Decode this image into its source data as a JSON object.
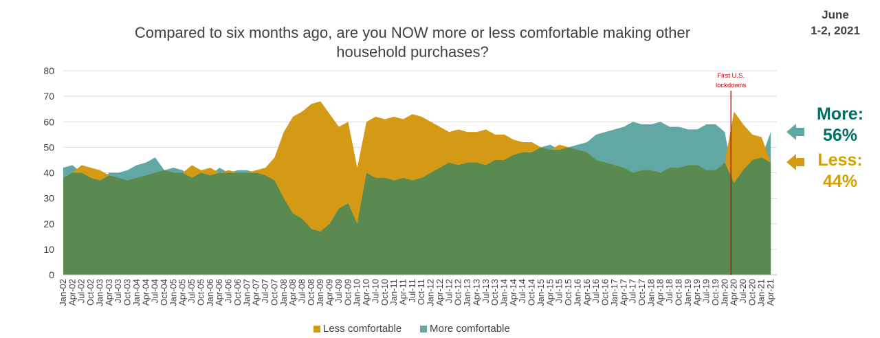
{
  "title": "Compared to six months ago, are you NOW more or less comfortable making other household purchases?",
  "date_stamp": "June\n1-2, 2021",
  "callouts": {
    "more_label": "More:",
    "more_value": "56%",
    "less_label": "Less:",
    "less_value": "44%"
  },
  "colors": {
    "less": "#d49a16",
    "more": "#61a8a4",
    "base": "#5a8a4f",
    "lockdown_line": "#c00000"
  },
  "legend": [
    "Less comfortable",
    "More comfortable"
  ],
  "chart_data": {
    "type": "area",
    "title": "Compared to six months ago, are you NOW more or less comfortable making other household purchases?",
    "ylim": [
      0,
      80
    ],
    "yticks": [
      0,
      10,
      20,
      30,
      40,
      50,
      60,
      70,
      80
    ],
    "grid": true,
    "legend_position": "bottom",
    "x_tick_labels": [
      "Jan-02",
      "Apr-02",
      "Jul-02",
      "Oct-02",
      "Jan-03",
      "Apr-03",
      "Jul-03",
      "Oct-03",
      "Jan-04",
      "Apr-04",
      "Jul-04",
      "Oct-04",
      "Jan-05",
      "Apr-05",
      "Jul-05",
      "Oct-05",
      "Jan-06",
      "Apr-06",
      "Jul-06",
      "Oct-06",
      "Jan-07",
      "Apr-07",
      "Jul-07",
      "Oct-07",
      "Jan-08",
      "Apr-08",
      "Jul-08",
      "Oct-08",
      "Jan-09",
      "Apr-09",
      "Jul-09",
      "Oct-09",
      "Jan-10",
      "Apr-10",
      "Jul-10",
      "Oct-10",
      "Jan-11",
      "Apr-11",
      "Jul-11",
      "Oct-11",
      "Jan-12",
      "Apr-12",
      "Jul-12",
      "Oct-12",
      "Jan-13",
      "Apr-13",
      "Jul-13",
      "Oct-13",
      "Jan-14",
      "Apr-14",
      "Jul-14",
      "Oct-14",
      "Jan-15",
      "Apr-15",
      "Jul-15",
      "Oct-15",
      "Jan-16",
      "Apr-16",
      "Jul-16",
      "Oct-16",
      "Jan-17",
      "Apr-17",
      "Jul-17",
      "Oct-17",
      "Jan-18",
      "Apr-18",
      "Jul-18",
      "Oct-18",
      "Jan-19",
      "Apr-19",
      "Jul-19",
      "Oct-19",
      "Jan-20",
      "Apr-20",
      "Jul-20",
      "Oct-20",
      "Jan-21",
      "Apr-21"
    ],
    "annotation": {
      "text": "First U.S. lockdowns",
      "x": "Mar-20"
    },
    "series": [
      {
        "name": "Less comfortable",
        "points": [
          [
            "Jan-02",
            38
          ],
          [
            "Apr-02",
            40
          ],
          [
            "Jul-02",
            43
          ],
          [
            "Oct-02",
            42
          ],
          [
            "Jan-03",
            41
          ],
          [
            "Apr-03",
            39
          ],
          [
            "Jul-03",
            38
          ],
          [
            "Oct-03",
            37
          ],
          [
            "Jan-04",
            38
          ],
          [
            "Apr-04",
            39
          ],
          [
            "Jul-04",
            40
          ],
          [
            "Oct-04",
            41
          ],
          [
            "Jan-05",
            40
          ],
          [
            "Apr-05",
            40
          ],
          [
            "Jul-05",
            43
          ],
          [
            "Oct-05",
            41
          ],
          [
            "Jan-06",
            42
          ],
          [
            "Apr-06",
            40
          ],
          [
            "Jul-06",
            41
          ],
          [
            "Oct-06",
            40
          ],
          [
            "Jan-07",
            40
          ],
          [
            "Apr-07",
            41
          ],
          [
            "Jul-07",
            42
          ],
          [
            "Oct-07",
            46
          ],
          [
            "Jan-08",
            56
          ],
          [
            "Apr-08",
            62
          ],
          [
            "Jul-08",
            64
          ],
          [
            "Oct-08",
            67
          ],
          [
            "Jan-09",
            68
          ],
          [
            "Apr-09",
            63
          ],
          [
            "Jul-09",
            58
          ],
          [
            "Oct-09",
            60
          ],
          [
            "Jan-10",
            42
          ],
          [
            "Apr-10",
            60
          ],
          [
            "Jul-10",
            62
          ],
          [
            "Oct-10",
            61
          ],
          [
            "Jan-11",
            62
          ],
          [
            "Apr-11",
            61
          ],
          [
            "Jul-11",
            63
          ],
          [
            "Oct-11",
            62
          ],
          [
            "Jan-12",
            60
          ],
          [
            "Apr-12",
            58
          ],
          [
            "Jul-12",
            56
          ],
          [
            "Oct-12",
            57
          ],
          [
            "Jan-13",
            56
          ],
          [
            "Apr-13",
            56
          ],
          [
            "Jul-13",
            57
          ],
          [
            "Oct-13",
            55
          ],
          [
            "Jan-14",
            55
          ],
          [
            "Apr-14",
            53
          ],
          [
            "Jul-14",
            52
          ],
          [
            "Oct-14",
            52
          ],
          [
            "Jan-15",
            50
          ],
          [
            "Apr-15",
            49
          ],
          [
            "Jul-15",
            51
          ],
          [
            "Oct-15",
            50
          ],
          [
            "Jan-16",
            49
          ],
          [
            "Apr-16",
            48
          ],
          [
            "Jul-16",
            45
          ],
          [
            "Oct-16",
            44
          ],
          [
            "Jan-17",
            43
          ],
          [
            "Apr-17",
            42
          ],
          [
            "Jul-17",
            40
          ],
          [
            "Oct-17",
            41
          ],
          [
            "Jan-18",
            41
          ],
          [
            "Apr-18",
            40
          ],
          [
            "Jul-18",
            42
          ],
          [
            "Oct-18",
            42
          ],
          [
            "Jan-19",
            43
          ],
          [
            "Apr-19",
            43
          ],
          [
            "Jul-19",
            41
          ],
          [
            "Oct-19",
            41
          ],
          [
            "Jan-20",
            44
          ],
          [
            "Apr-20",
            64
          ],
          [
            "Jul-20",
            59
          ],
          [
            "Oct-20",
            55
          ],
          [
            "Jan-21",
            54
          ],
          [
            "Apr-21",
            44
          ]
        ]
      },
      {
        "name": "More comfortable",
        "points": [
          [
            "Jan-02",
            42
          ],
          [
            "Apr-02",
            43
          ],
          [
            "Jul-02",
            40
          ],
          [
            "Oct-02",
            38
          ],
          [
            "Jan-03",
            37
          ],
          [
            "Apr-03",
            40
          ],
          [
            "Jul-03",
            40
          ],
          [
            "Oct-03",
            41
          ],
          [
            "Jan-04",
            43
          ],
          [
            "Apr-04",
            44
          ],
          [
            "Jul-04",
            46
          ],
          [
            "Oct-04",
            41
          ],
          [
            "Jan-05",
            42
          ],
          [
            "Apr-05",
            41
          ],
          [
            "Jul-05",
            38
          ],
          [
            "Oct-05",
            40
          ],
          [
            "Jan-06",
            39
          ],
          [
            "Apr-06",
            42
          ],
          [
            "Jul-06",
            40
          ],
          [
            "Oct-06",
            41
          ],
          [
            "Jan-07",
            41
          ],
          [
            "Apr-07",
            40
          ],
          [
            "Jul-07",
            39
          ],
          [
            "Oct-07",
            37
          ],
          [
            "Jan-08",
            30
          ],
          [
            "Apr-08",
            24
          ],
          [
            "Jul-08",
            22
          ],
          [
            "Oct-08",
            18
          ],
          [
            "Jan-09",
            17
          ],
          [
            "Apr-09",
            20
          ],
          [
            "Jul-09",
            26
          ],
          [
            "Oct-09",
            28
          ],
          [
            "Jan-10",
            20
          ],
          [
            "Apr-10",
            40
          ],
          [
            "Jul-10",
            38
          ],
          [
            "Oct-10",
            38
          ],
          [
            "Jan-11",
            37
          ],
          [
            "Apr-11",
            38
          ],
          [
            "Jul-11",
            37
          ],
          [
            "Oct-11",
            38
          ],
          [
            "Jan-12",
            40
          ],
          [
            "Apr-12",
            42
          ],
          [
            "Jul-12",
            44
          ],
          [
            "Oct-12",
            43
          ],
          [
            "Jan-13",
            44
          ],
          [
            "Apr-13",
            44
          ],
          [
            "Jul-13",
            43
          ],
          [
            "Oct-13",
            45
          ],
          [
            "Jan-14",
            45
          ],
          [
            "Apr-14",
            47
          ],
          [
            "Jul-14",
            48
          ],
          [
            "Oct-14",
            48
          ],
          [
            "Jan-15",
            50
          ],
          [
            "Apr-15",
            51
          ],
          [
            "Jul-15",
            49
          ],
          [
            "Oct-15",
            50
          ],
          [
            "Jan-16",
            51
          ],
          [
            "Apr-16",
            52
          ],
          [
            "Jul-16",
            55
          ],
          [
            "Oct-16",
            56
          ],
          [
            "Jan-17",
            57
          ],
          [
            "Apr-17",
            58
          ],
          [
            "Jul-17",
            60
          ],
          [
            "Oct-17",
            59
          ],
          [
            "Jan-18",
            59
          ],
          [
            "Apr-18",
            60
          ],
          [
            "Jul-18",
            58
          ],
          [
            "Oct-18",
            58
          ],
          [
            "Jan-19",
            57
          ],
          [
            "Apr-19",
            57
          ],
          [
            "Jul-19",
            59
          ],
          [
            "Oct-19",
            59
          ],
          [
            "Jan-20",
            56
          ],
          [
            "Apr-20",
            36
          ],
          [
            "Jul-20",
            41
          ],
          [
            "Oct-20",
            45
          ],
          [
            "Jan-21",
            46
          ],
          [
            "Apr-21",
            56
          ]
        ]
      }
    ]
  }
}
